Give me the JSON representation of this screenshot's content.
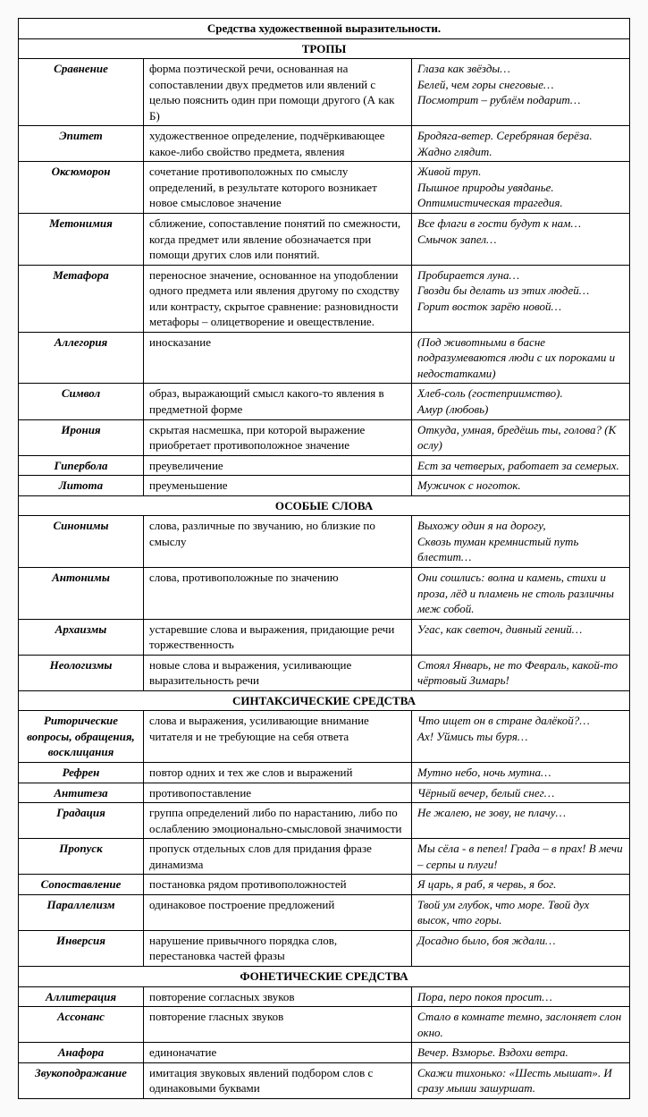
{
  "main_title": "Средства художественной выразительности.",
  "sections": [
    {
      "header": "ТРОПЫ",
      "rows": [
        {
          "term": "Сравнение",
          "definition": "форма поэтической речи, основанная на сопоставлении двух предметов или явлений с целью пояснить один при помощи другого (А как Б)",
          "example": "Глаза как звёзды…\nБелей, чем горы снеговые…\nПосмотрит – рублём подарит…"
        },
        {
          "term": "Эпитет",
          "definition": "художественное определение, подчёркивающее какое-либо свойство предмета, явления",
          "example": "Бродяга-ветер. Серебряная берёза. Жадно глядит."
        },
        {
          "term": "Оксюморон",
          "definition": "сочетание противоположных по смыслу определений, в результате которого возникает новое смысловое значение",
          "example": "Живой труп.\nПышное природы увяданье.\nОптимистическая трагедия."
        },
        {
          "term": "Метонимия",
          "definition": "сближение, сопоставление понятий по смежности, когда предмет или явление обозначается при помощи других слов или понятий.",
          "example": "Все флаги в гости будут к нам…\nСмычок запел…"
        },
        {
          "term": "Метафора",
          "definition": "переносное значение, основанное на уподоблении одного предмета или явления другому по сходству или контрасту, скрытое сравнение: разновидности метафоры – олицетворение и овеществление.",
          "example": "Пробирается луна…\nГвозди бы делать из этих людей…\nГорит восток зарёю новой…"
        },
        {
          "term": "Аллегория",
          "definition": "иносказание",
          "example": "(Под животными в басне подразумеваются люди с их пороками и недостатками)"
        },
        {
          "term": "Символ",
          "definition": "образ, выражающий смысл какого-то явления в предметной форме",
          "example": "Хлеб-соль (гостеприимство).\nАмур (любовь)"
        },
        {
          "term": "Ирония",
          "definition": "скрытая насмешка, при которой выражение приобретает противоположное значение",
          "example": "Откуда, умная, бредёшь ты, голова? (К ослу)"
        },
        {
          "term": "Гипербола",
          "definition": "преувеличение",
          "example": "Ест за четверых, работает за семерых."
        },
        {
          "term": "Литота",
          "definition": "преуменьшение",
          "example": "Мужичок с ноготок."
        }
      ]
    },
    {
      "header": "ОСОБЫЕ СЛОВА",
      "rows": [
        {
          "term": "Синонимы",
          "definition": "слова, различные по звучанию, но близкие по смыслу",
          "example": "Выхожу один я на дорогу,\nСквозь туман кремнистый путь блестит…"
        },
        {
          "term": "Антонимы",
          "definition": "слова, противоположные по значению",
          "example": "Они сошлись: волна и камень, стихи и проза, лёд и пламень не столь различны меж собой."
        },
        {
          "term": "Архаизмы",
          "definition": "устаревшие слова и выражения, придающие речи торжественность",
          "example": "Угас, как светоч, дивный гений…"
        },
        {
          "term": "Неологизмы",
          "definition": "новые слова и выражения, усиливающие выразительность речи",
          "example": "Стоял Январь, не то Февраль, какой-то чёртовый Зимарь!"
        }
      ]
    },
    {
      "header": "СИНТАКСИЧЕСКИЕ СРЕДСТВА",
      "rows": [
        {
          "term": "Риторические вопросы, обращения, восклицания",
          "definition": "слова и выражения, усиливающие внимание читателя и не требующие на себя ответа",
          "example": "Что ищет он в стране далёкой?…\nАх! Уймись ты буря…"
        },
        {
          "term": "Рефрен",
          "definition": "повтор одних и тех же слов и выражений",
          "example": "Мутно небо, ночь мутна…"
        },
        {
          "term": "Антитеза",
          "definition": "противопоставление",
          "example": "Чёрный вечер, белый снег…"
        },
        {
          "term": "Градация",
          "definition": "группа определений либо по нарастанию, либо по ослаблению эмоционально-смысловой значимости",
          "example": "Не жалею, не зову, не плачу…"
        },
        {
          "term": "Пропуск",
          "definition": "пропуск отдельных слов для придания фразе динамизма",
          "example": "Мы сёла -  в пепел! Града – в прах! В мечи – серпы и плуги!"
        },
        {
          "term": "Сопоставление",
          "definition": "постановка рядом противоположностей",
          "example": "Я царь, я раб, я червь, я бог."
        },
        {
          "term": "Параллелизм",
          "definition": "одинаковое построение предложений",
          "example": "Твой ум глубок, что море. Твой дух высок, что горы."
        },
        {
          "term": "Инверсия",
          "definition": "нарушение привычного порядка слов, перестановка частей фразы",
          "example": "Досадно было, боя ждали…"
        }
      ]
    },
    {
      "header": "ФОНЕТИЧЕСКИЕ СРЕДСТВА",
      "rows": [
        {
          "term": "Аллитерация",
          "definition": "повторение согласных звуков",
          "example": "Пора, перо покоя просит…"
        },
        {
          "term": "Ассонанс",
          "definition": "повторение гласных звуков",
          "example": "Стало в комнате темно, заслоняет слон окно."
        },
        {
          "term": "Анафора",
          "definition": "единоначатие",
          "example": "Вечер. Взморье. Вздохи ветра."
        },
        {
          "term": "Звукоподражание",
          "definition": "имитация звуковых явлений подбором слов с одинаковыми буквами",
          "example": "Скажи тихонько: «Шесть мышат». И сразу мыши зашуршат."
        }
      ]
    }
  ]
}
